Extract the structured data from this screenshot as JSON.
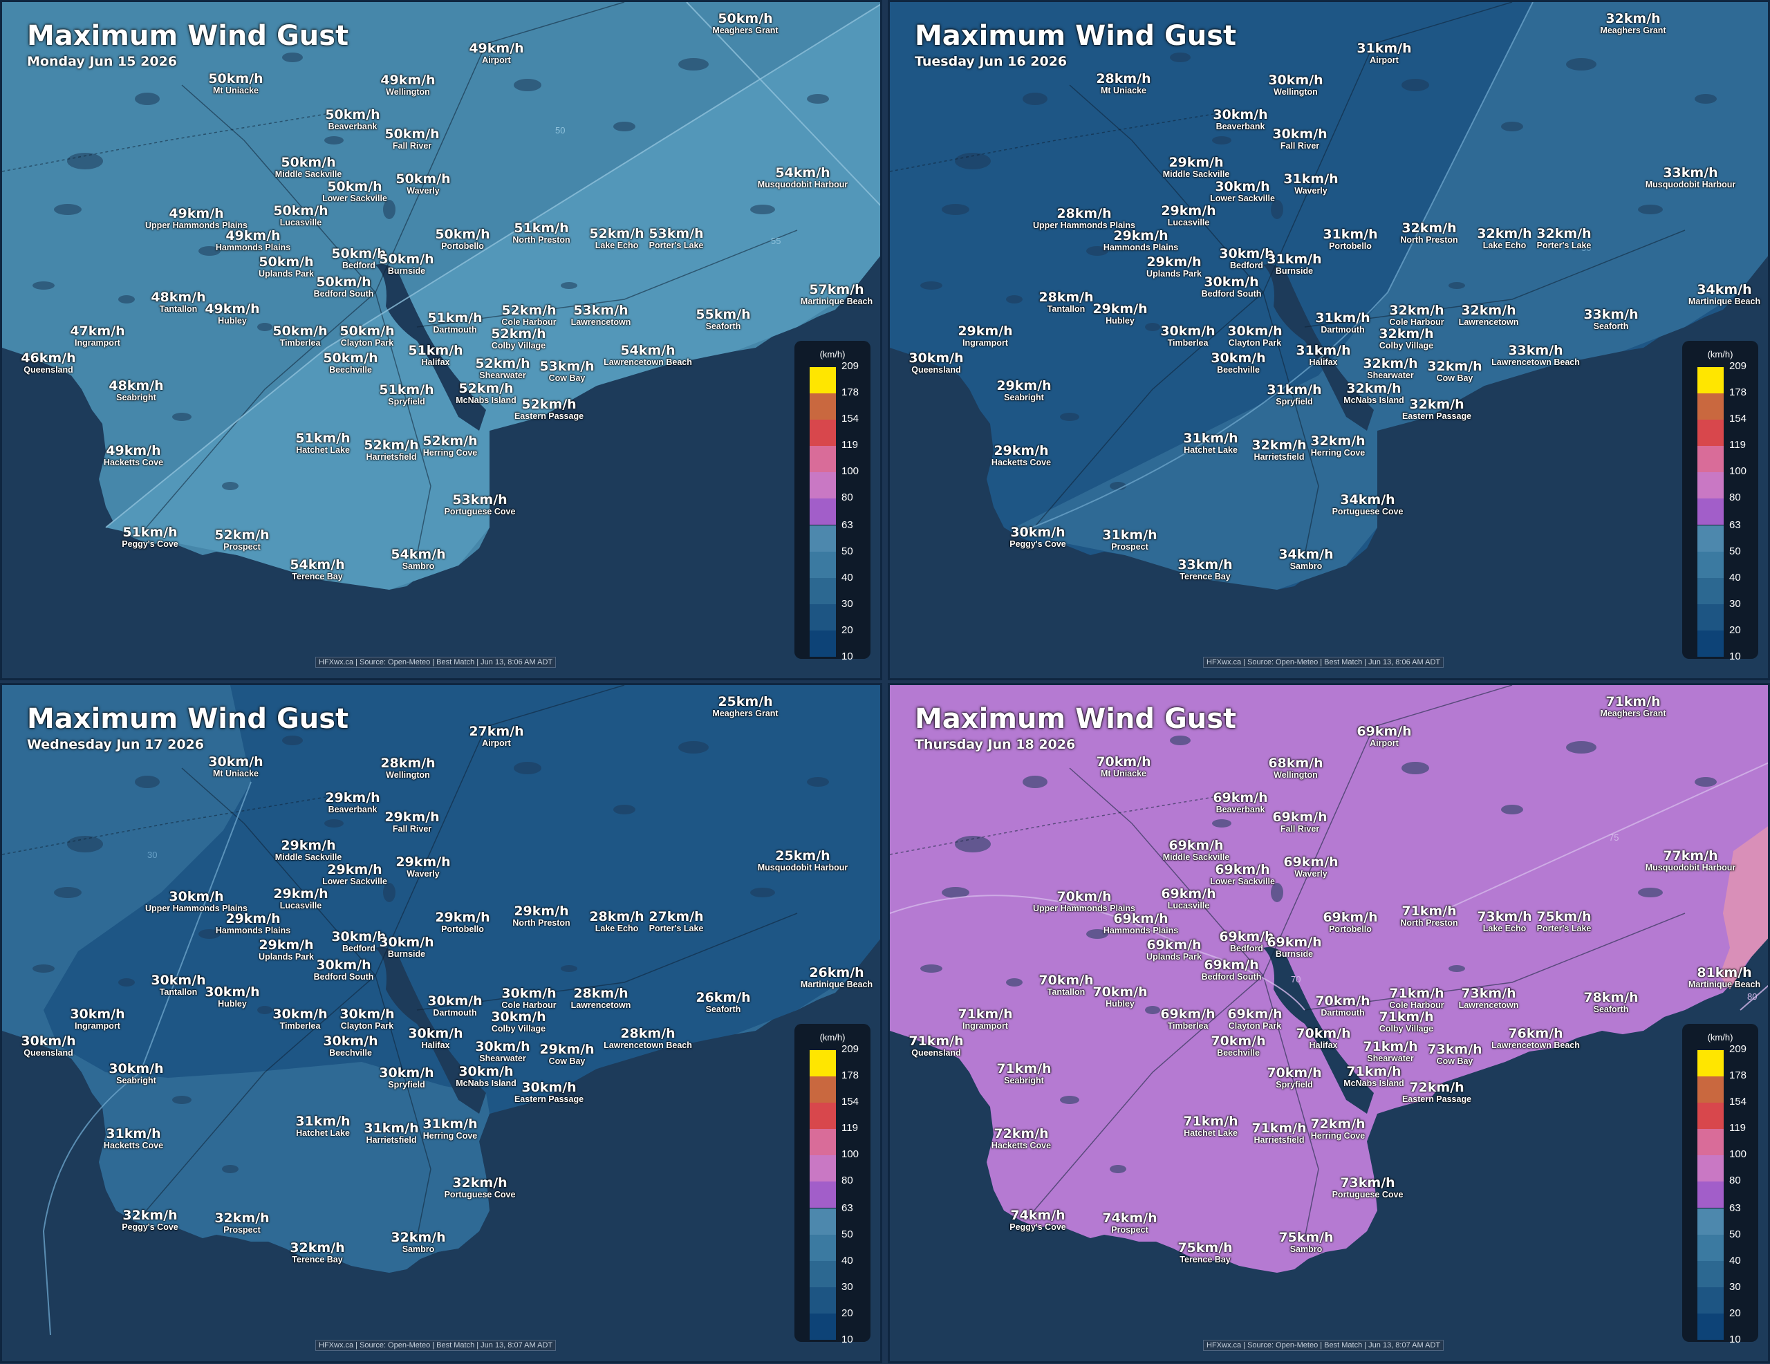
{
  "legend": {
    "title": "(km/h)",
    "ticks": [
      "209",
      "178",
      "154",
      "119",
      "100",
      "80",
      "63",
      "50",
      "40",
      "30",
      "20",
      "10"
    ],
    "colors": [
      "#ffe600",
      "#c9683f",
      "#d8474c",
      "#d96c99",
      "#c978c4",
      "#a25ec9",
      "#4d88ad",
      "#3b7aa1",
      "#2c6891",
      "#1d5583",
      "#0d4377"
    ]
  },
  "panels": [
    {
      "title": "Maximum Wind Gust",
      "date": "Monday Jun 15 2026",
      "attribution": "HFXwx.ca | Source: Open-Meteo | Best Match | Jun 13, 8:06 AM ADT",
      "colors": {
        "primary": "#4687aa",
        "secondary": "#5397b9",
        "water": "#1d3b5a",
        "line": "#8ec1db"
      },
      "contours": [
        "50",
        "55"
      ],
      "locations": [
        {
          "value": "50km/h",
          "name": "Meaghers Grant"
        },
        {
          "value": "49km/h",
          "name": "Airport"
        },
        {
          "value": "50km/h",
          "name": "Mt Uniacke"
        },
        {
          "value": "49km/h",
          "name": "Wellington"
        },
        {
          "value": "50km/h",
          "name": "Beaverbank"
        },
        {
          "value": "50km/h",
          "name": "Fall River"
        },
        {
          "value": "50km/h",
          "name": "Middle Sackville"
        },
        {
          "value": "54km/h",
          "name": "Musquodobit Harbour"
        },
        {
          "value": "50km/h",
          "name": "Lower Sackville"
        },
        {
          "value": "50km/h",
          "name": "Waverly"
        },
        {
          "value": "49km/h",
          "name": "Upper Hammonds Plains"
        },
        {
          "value": "50km/h",
          "name": "Lucasville"
        },
        {
          "value": "49km/h",
          "name": "Hammonds Plains"
        },
        {
          "value": "50km/h",
          "name": "Portobello"
        },
        {
          "value": "51km/h",
          "name": "North Preston"
        },
        {
          "value": "52km/h",
          "name": "Lake Echo"
        },
        {
          "value": "53km/h",
          "name": "Porter's Lake"
        },
        {
          "value": "50km/h",
          "name": "Bedford"
        },
        {
          "value": "50km/h",
          "name": "Uplands Park"
        },
        {
          "value": "50km/h",
          "name": "Burnside"
        },
        {
          "value": "50km/h",
          "name": "Bedford South"
        },
        {
          "value": "57km/h",
          "name": "Martinique Beach"
        },
        {
          "value": "48km/h",
          "name": "Tantallon"
        },
        {
          "value": "49km/h",
          "name": "Hubley"
        },
        {
          "value": "52km/h",
          "name": "Cole Harbour"
        },
        {
          "value": "53km/h",
          "name": "Lawrencetown"
        },
        {
          "value": "51km/h",
          "name": "Dartmouth"
        },
        {
          "value": "55km/h",
          "name": "Seaforth"
        },
        {
          "value": "47km/h",
          "name": "Ingramport"
        },
        {
          "value": "50km/h",
          "name": "Timberlea"
        },
        {
          "value": "50km/h",
          "name": "Clayton Park"
        },
        {
          "value": "52km/h",
          "name": "Colby Village"
        },
        {
          "value": "46km/h",
          "name": "Queensland"
        },
        {
          "value": "51km/h",
          "name": "Halifax"
        },
        {
          "value": "54km/h",
          "name": "Lawrencetown Beach"
        },
        {
          "value": "50km/h",
          "name": "Beechville"
        },
        {
          "value": "52km/h",
          "name": "Shearwater"
        },
        {
          "value": "53km/h",
          "name": "Cow Bay"
        },
        {
          "value": "48km/h",
          "name": "Seabright"
        },
        {
          "value": "52km/h",
          "name": "McNabs Island"
        },
        {
          "value": "51km/h",
          "name": "Spryfield"
        },
        {
          "value": "52km/h",
          "name": "Eastern Passage"
        },
        {
          "value": "51km/h",
          "name": "Hatchet Lake"
        },
        {
          "value": "52km/h",
          "name": "Harrietsfield"
        },
        {
          "value": "52km/h",
          "name": "Herring Cove"
        },
        {
          "value": "49km/h",
          "name": "Hacketts Cove"
        },
        {
          "value": "53km/h",
          "name": "Portuguese Cove"
        },
        {
          "value": "51km/h",
          "name": "Peggy's Cove"
        },
        {
          "value": "52km/h",
          "name": "Prospect"
        },
        {
          "value": "54km/h",
          "name": "Terence Bay"
        },
        {
          "value": "54km/h",
          "name": "Sambro"
        }
      ]
    },
    {
      "title": "Maximum Wind Gust",
      "date": "Tuesday Jun 16 2026",
      "attribution": "HFXwx.ca | Source: Open-Meteo | Best Match | Jun 13, 8:06 AM ADT",
      "colors": {
        "primary": "#1e5685",
        "secondary": "#2f6a95",
        "water": "#1d3b5a",
        "line": "#6aa2c8"
      },
      "contours": [
        "30"
      ],
      "locations": [
        {
          "value": "32km/h",
          "name": "Meaghers Grant"
        },
        {
          "value": "31km/h",
          "name": "Airport"
        },
        {
          "value": "28km/h",
          "name": "Mt Uniacke"
        },
        {
          "value": "30km/h",
          "name": "Wellington"
        },
        {
          "value": "30km/h",
          "name": "Beaverbank"
        },
        {
          "value": "30km/h",
          "name": "Fall River"
        },
        {
          "value": "29km/h",
          "name": "Middle Sackville"
        },
        {
          "value": "33km/h",
          "name": "Musquodobit Harbour"
        },
        {
          "value": "30km/h",
          "name": "Lower Sackville"
        },
        {
          "value": "31km/h",
          "name": "Waverly"
        },
        {
          "value": "28km/h",
          "name": "Upper Hammonds Plains"
        },
        {
          "value": "29km/h",
          "name": "Lucasville"
        },
        {
          "value": "29km/h",
          "name": "Hammonds Plains"
        },
        {
          "value": "31km/h",
          "name": "Portobello"
        },
        {
          "value": "32km/h",
          "name": "North Preston"
        },
        {
          "value": "32km/h",
          "name": "Lake Echo"
        },
        {
          "value": "32km/h",
          "name": "Porter's Lake"
        },
        {
          "value": "30km/h",
          "name": "Bedford"
        },
        {
          "value": "29km/h",
          "name": "Uplands Park"
        },
        {
          "value": "31km/h",
          "name": "Burnside"
        },
        {
          "value": "30km/h",
          "name": "Bedford South"
        },
        {
          "value": "34km/h",
          "name": "Martinique Beach"
        },
        {
          "value": "28km/h",
          "name": "Tantallon"
        },
        {
          "value": "29km/h",
          "name": "Hubley"
        },
        {
          "value": "32km/h",
          "name": "Cole Harbour"
        },
        {
          "value": "32km/h",
          "name": "Lawrencetown"
        },
        {
          "value": "31km/h",
          "name": "Dartmouth"
        },
        {
          "value": "33km/h",
          "name": "Seaforth"
        },
        {
          "value": "29km/h",
          "name": "Ingramport"
        },
        {
          "value": "30km/h",
          "name": "Timberlea"
        },
        {
          "value": "30km/h",
          "name": "Clayton Park"
        },
        {
          "value": "32km/h",
          "name": "Colby Village"
        },
        {
          "value": "30km/h",
          "name": "Queensland"
        },
        {
          "value": "31km/h",
          "name": "Halifax"
        },
        {
          "value": "33km/h",
          "name": "Lawrencetown Beach"
        },
        {
          "value": "30km/h",
          "name": "Beechville"
        },
        {
          "value": "32km/h",
          "name": "Shearwater"
        },
        {
          "value": "32km/h",
          "name": "Cow Bay"
        },
        {
          "value": "29km/h",
          "name": "Seabright"
        },
        {
          "value": "32km/h",
          "name": "McNabs Island"
        },
        {
          "value": "31km/h",
          "name": "Spryfield"
        },
        {
          "value": "32km/h",
          "name": "Eastern Passage"
        },
        {
          "value": "31km/h",
          "name": "Hatchet Lake"
        },
        {
          "value": "32km/h",
          "name": "Harrietsfield"
        },
        {
          "value": "32km/h",
          "name": "Herring Cove"
        },
        {
          "value": "29km/h",
          "name": "Hacketts Cove"
        },
        {
          "value": "34km/h",
          "name": "Portuguese Cove"
        },
        {
          "value": "30km/h",
          "name": "Peggy's Cove"
        },
        {
          "value": "31km/h",
          "name": "Prospect"
        },
        {
          "value": "33km/h",
          "name": "Terence Bay"
        },
        {
          "value": "34km/h",
          "name": "Sambro"
        }
      ]
    },
    {
      "title": "Maximum Wind Gust",
      "date": "Wednesday Jun 17 2026",
      "attribution": "HFXwx.ca | Source: Open-Meteo | Best Match | Jun 13, 8:07 AM ADT",
      "colors": {
        "primary": "#1e5685",
        "secondary": "#2f6a95",
        "water": "#1d3b5a",
        "line": "#6aa2c8"
      },
      "contours": [
        "30"
      ],
      "locations": [
        {
          "value": "25km/h",
          "name": "Meaghers Grant"
        },
        {
          "value": "27km/h",
          "name": "Airport"
        },
        {
          "value": "30km/h",
          "name": "Mt Uniacke"
        },
        {
          "value": "28km/h",
          "name": "Wellington"
        },
        {
          "value": "29km/h",
          "name": "Beaverbank"
        },
        {
          "value": "29km/h",
          "name": "Fall River"
        },
        {
          "value": "29km/h",
          "name": "Middle Sackville"
        },
        {
          "value": "25km/h",
          "name": "Musquodobit Harbour"
        },
        {
          "value": "29km/h",
          "name": "Lower Sackville"
        },
        {
          "value": "29km/h",
          "name": "Waverly"
        },
        {
          "value": "30km/h",
          "name": "Upper Hammonds Plains"
        },
        {
          "value": "29km/h",
          "name": "Lucasville"
        },
        {
          "value": "29km/h",
          "name": "Hammonds Plains"
        },
        {
          "value": "29km/h",
          "name": "Portobello"
        },
        {
          "value": "29km/h",
          "name": "North Preston"
        },
        {
          "value": "28km/h",
          "name": "Lake Echo"
        },
        {
          "value": "27km/h",
          "name": "Porter's Lake"
        },
        {
          "value": "30km/h",
          "name": "Bedford"
        },
        {
          "value": "29km/h",
          "name": "Uplands Park"
        },
        {
          "value": "30km/h",
          "name": "Burnside"
        },
        {
          "value": "30km/h",
          "name": "Bedford South"
        },
        {
          "value": "26km/h",
          "name": "Martinique Beach"
        },
        {
          "value": "30km/h",
          "name": "Tantallon"
        },
        {
          "value": "30km/h",
          "name": "Hubley"
        },
        {
          "value": "30km/h",
          "name": "Cole Harbour"
        },
        {
          "value": "28km/h",
          "name": "Lawrencetown"
        },
        {
          "value": "30km/h",
          "name": "Dartmouth"
        },
        {
          "value": "26km/h",
          "name": "Seaforth"
        },
        {
          "value": "30km/h",
          "name": "Ingramport"
        },
        {
          "value": "30km/h",
          "name": "Timberlea"
        },
        {
          "value": "30km/h",
          "name": "Clayton Park"
        },
        {
          "value": "30km/h",
          "name": "Colby Village"
        },
        {
          "value": "30km/h",
          "name": "Queensland"
        },
        {
          "value": "30km/h",
          "name": "Halifax"
        },
        {
          "value": "28km/h",
          "name": "Lawrencetown Beach"
        },
        {
          "value": "30km/h",
          "name": "Beechville"
        },
        {
          "value": "30km/h",
          "name": "Shearwater"
        },
        {
          "value": "29km/h",
          "name": "Cow Bay"
        },
        {
          "value": "30km/h",
          "name": "Seabright"
        },
        {
          "value": "30km/h",
          "name": "McNabs Island"
        },
        {
          "value": "30km/h",
          "name": "Spryfield"
        },
        {
          "value": "30km/h",
          "name": "Eastern Passage"
        },
        {
          "value": "31km/h",
          "name": "Hatchet Lake"
        },
        {
          "value": "31km/h",
          "name": "Harrietsfield"
        },
        {
          "value": "31km/h",
          "name": "Herring Cove"
        },
        {
          "value": "31km/h",
          "name": "Hacketts Cove"
        },
        {
          "value": "32km/h",
          "name": "Portuguese Cove"
        },
        {
          "value": "32km/h",
          "name": "Peggy's Cove"
        },
        {
          "value": "32km/h",
          "name": "Prospect"
        },
        {
          "value": "32km/h",
          "name": "Terence Bay"
        },
        {
          "value": "32km/h",
          "name": "Sambro"
        }
      ]
    },
    {
      "title": "Maximum Wind Gust",
      "date": "Thursday Jun 18 2026",
      "attribution": "HFXwx.ca | Source: Open-Meteo | Best Match | Jun 13, 8:07 AM ADT",
      "colors": {
        "primary": "#b57ad2",
        "secondary": "#b57ad2",
        "water": "#1d3b5a",
        "line": "#d4b8ea",
        "accent": "#d98fb8"
      },
      "contours": [
        "70",
        "75",
        "80"
      ],
      "locations": [
        {
          "value": "71km/h",
          "name": "Meaghers Grant"
        },
        {
          "value": "69km/h",
          "name": "Airport"
        },
        {
          "value": "70km/h",
          "name": "Mt Uniacke"
        },
        {
          "value": "68km/h",
          "name": "Wellington"
        },
        {
          "value": "69km/h",
          "name": "Beaverbank"
        },
        {
          "value": "69km/h",
          "name": "Fall River"
        },
        {
          "value": "69km/h",
          "name": "Middle Sackville"
        },
        {
          "value": "77km/h",
          "name": "Musquodobit Harbour"
        },
        {
          "value": "69km/h",
          "name": "Lower Sackville"
        },
        {
          "value": "69km/h",
          "name": "Waverly"
        },
        {
          "value": "70km/h",
          "name": "Upper Hammonds Plains"
        },
        {
          "value": "69km/h",
          "name": "Lucasville"
        },
        {
          "value": "69km/h",
          "name": "Hammonds Plains"
        },
        {
          "value": "69km/h",
          "name": "Portobello"
        },
        {
          "value": "71km/h",
          "name": "North Preston"
        },
        {
          "value": "73km/h",
          "name": "Lake Echo"
        },
        {
          "value": "75km/h",
          "name": "Porter's Lake"
        },
        {
          "value": "69km/h",
          "name": "Bedford"
        },
        {
          "value": "69km/h",
          "name": "Uplands Park"
        },
        {
          "value": "69km/h",
          "name": "Burnside"
        },
        {
          "value": "69km/h",
          "name": "Bedford South"
        },
        {
          "value": "81km/h",
          "name": "Martinique Beach"
        },
        {
          "value": "70km/h",
          "name": "Tantallon"
        },
        {
          "value": "70km/h",
          "name": "Hubley"
        },
        {
          "value": "71km/h",
          "name": "Cole Harbour"
        },
        {
          "value": "73km/h",
          "name": "Lawrencetown"
        },
        {
          "value": "70km/h",
          "name": "Dartmouth"
        },
        {
          "value": "78km/h",
          "name": "Seaforth"
        },
        {
          "value": "71km/h",
          "name": "Ingramport"
        },
        {
          "value": "69km/h",
          "name": "Timberlea"
        },
        {
          "value": "69km/h",
          "name": "Clayton Park"
        },
        {
          "value": "71km/h",
          "name": "Colby Village"
        },
        {
          "value": "71km/h",
          "name": "Queensland"
        },
        {
          "value": "70km/h",
          "name": "Halifax"
        },
        {
          "value": "76km/h",
          "name": "Lawrencetown Beach"
        },
        {
          "value": "70km/h",
          "name": "Beechville"
        },
        {
          "value": "71km/h",
          "name": "Shearwater"
        },
        {
          "value": "73km/h",
          "name": "Cow Bay"
        },
        {
          "value": "71km/h",
          "name": "Seabright"
        },
        {
          "value": "71km/h",
          "name": "McNabs Island"
        },
        {
          "value": "70km/h",
          "name": "Spryfield"
        },
        {
          "value": "72km/h",
          "name": "Eastern Passage"
        },
        {
          "value": "71km/h",
          "name": "Hatchet Lake"
        },
        {
          "value": "71km/h",
          "name": "Harrietsfield"
        },
        {
          "value": "72km/h",
          "name": "Herring Cove"
        },
        {
          "value": "72km/h",
          "name": "Hacketts Cove"
        },
        {
          "value": "73km/h",
          "name": "Portuguese Cove"
        },
        {
          "value": "74km/h",
          "name": "Peggy's Cove"
        },
        {
          "value": "74km/h",
          "name": "Prospect"
        },
        {
          "value": "75km/h",
          "name": "Terence Bay"
        },
        {
          "value": "75km/h",
          "name": "Sambro"
        }
      ]
    }
  ]
}
